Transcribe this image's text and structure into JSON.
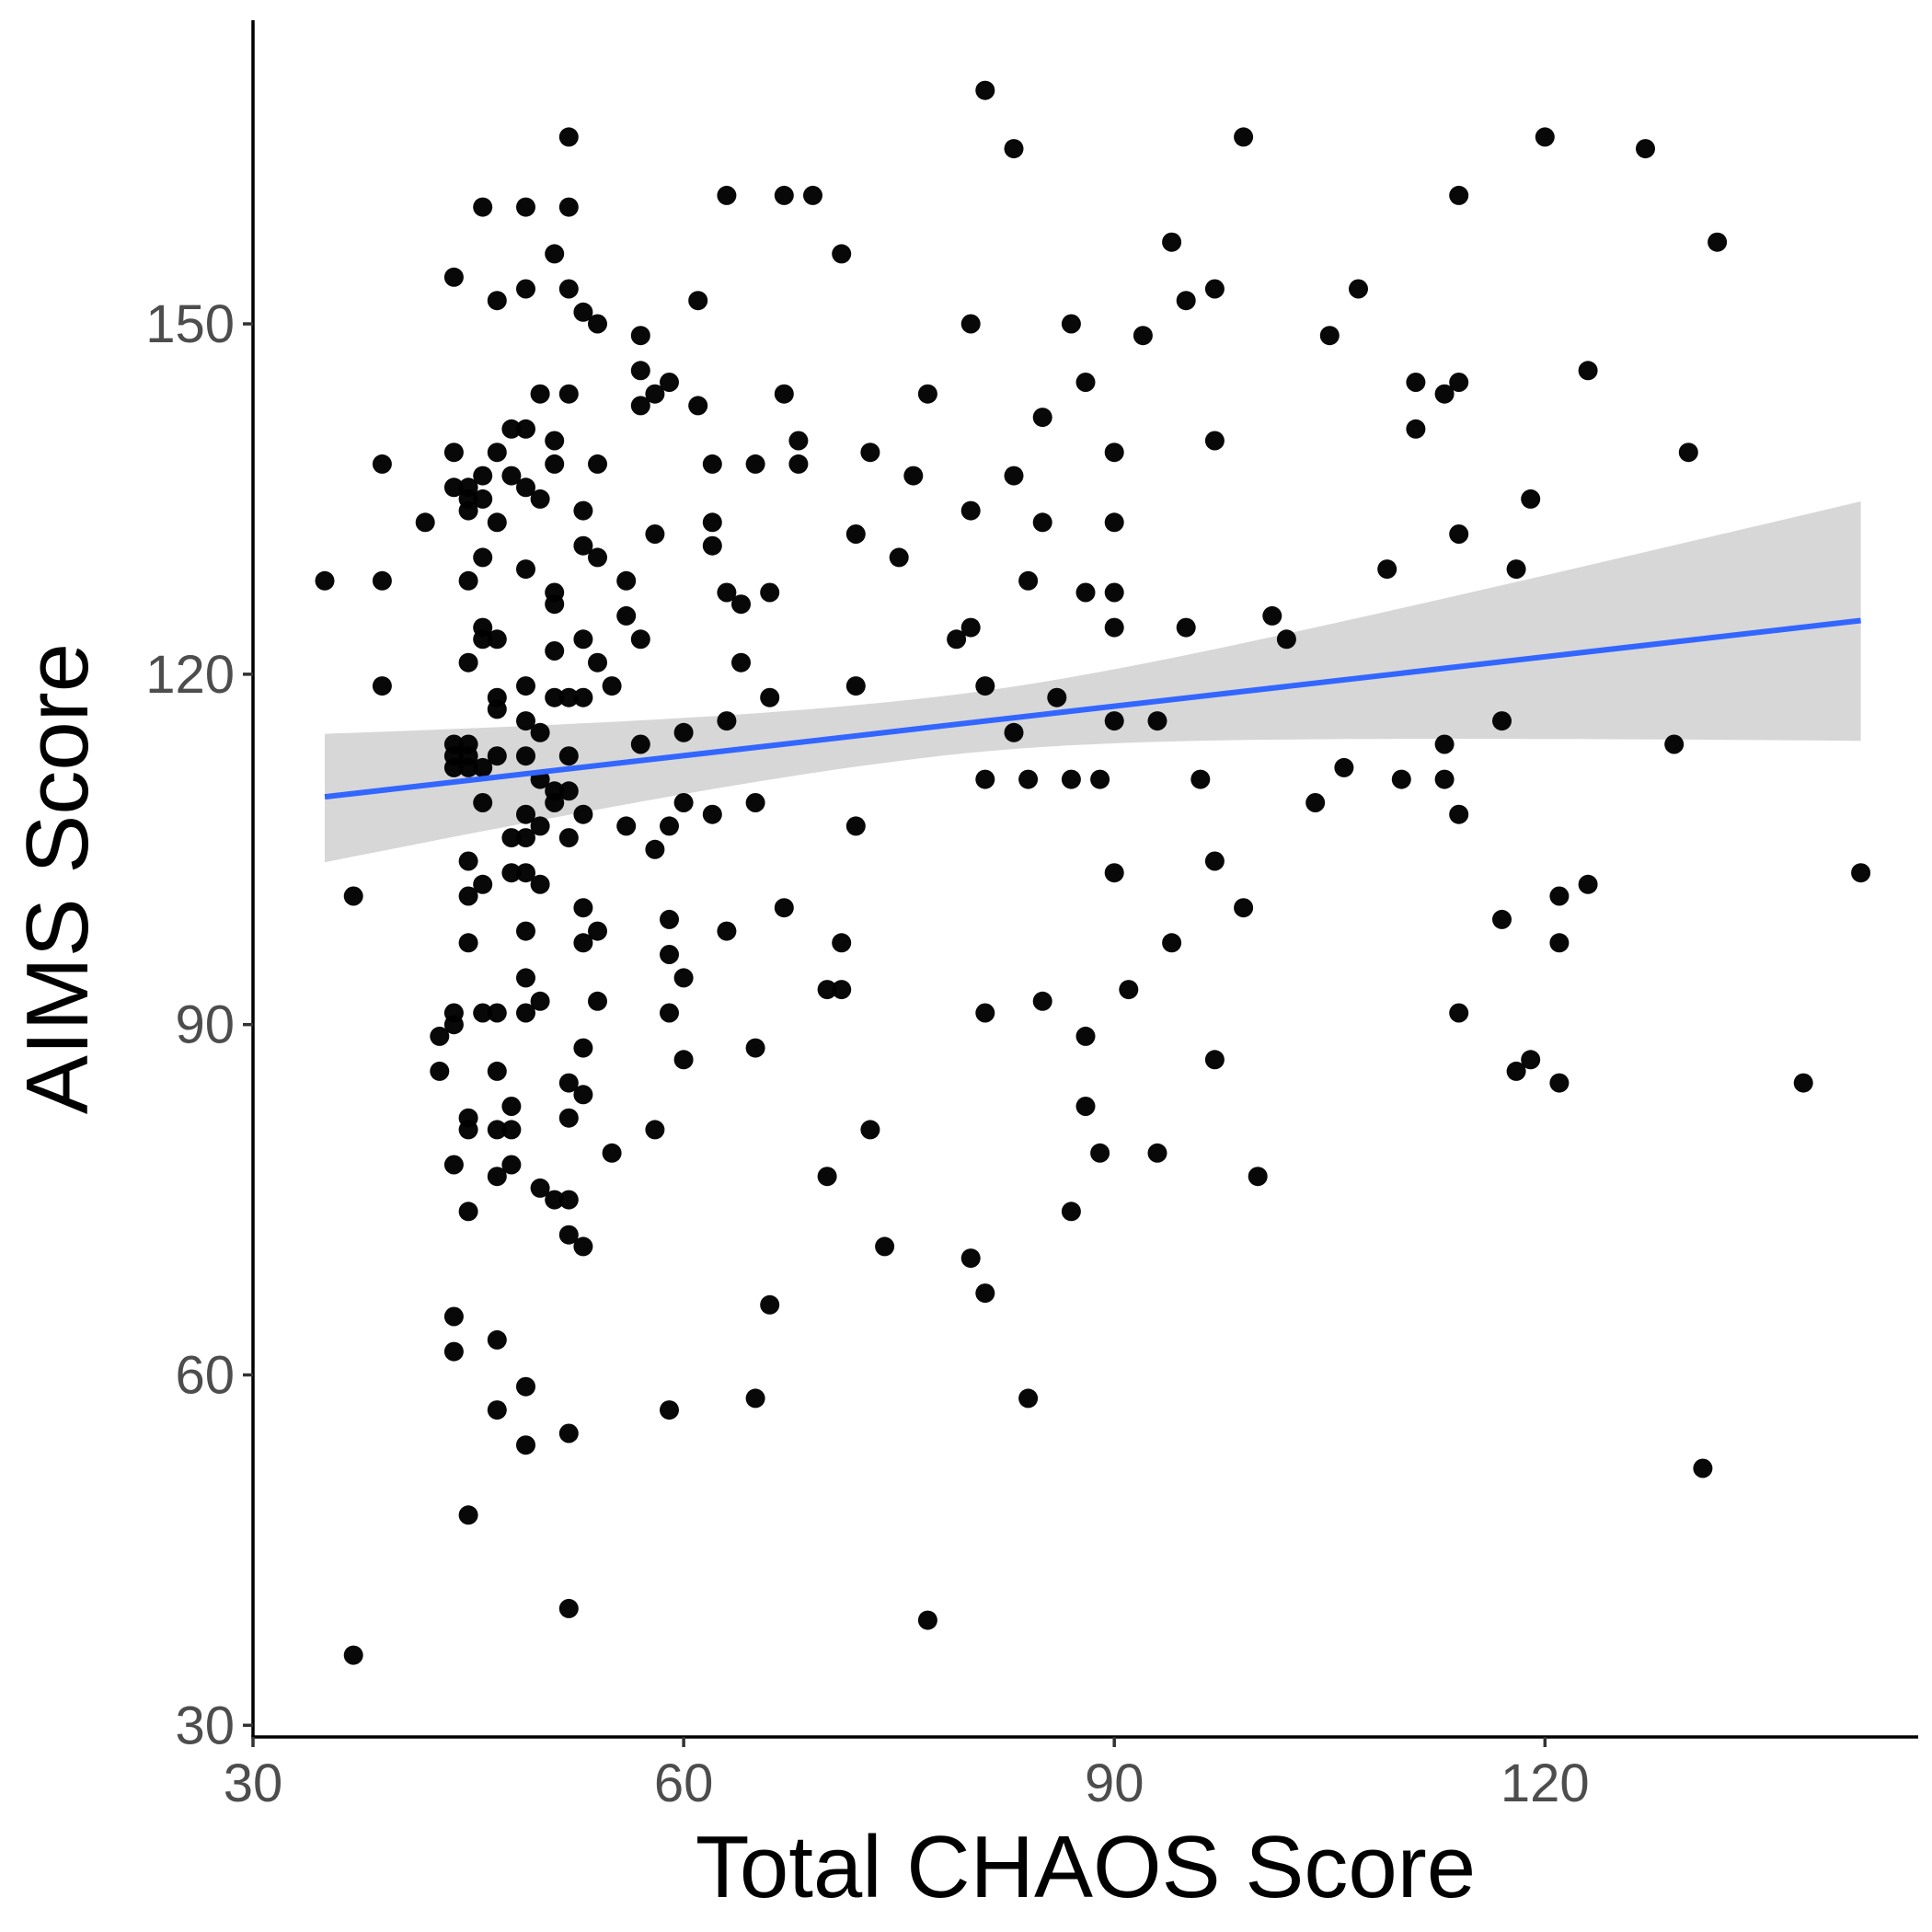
{
  "chart_data": {
    "type": "scatter",
    "title": "",
    "xlabel": "Total CHAOS Score",
    "ylabel": "AIMS Score",
    "xlim": [
      30,
      146
    ],
    "ylim": [
      29,
      176
    ],
    "x_ticks": [
      30,
      60,
      90,
      120
    ],
    "y_ticks": [
      30,
      60,
      90,
      120,
      150
    ],
    "grid": false,
    "legend": "none",
    "colors": {
      "points": "#000000",
      "fit_line": "#3366FF",
      "ribbon": "#D3D3D3"
    },
    "fit": {
      "type": "linear",
      "x": [
        35,
        142
      ],
      "y": [
        109.5,
        124.6
      ],
      "ci_lower": [
        103.9,
        114.3
      ],
      "ci_upper": [
        114.9,
        134.8
      ]
    },
    "points": [
      [
        35,
        128
      ],
      [
        37,
        101
      ],
      [
        37,
        36
      ],
      [
        39,
        138
      ],
      [
        39,
        128
      ],
      [
        39,
        119
      ],
      [
        42,
        133
      ],
      [
        43,
        89
      ],
      [
        43,
        86
      ],
      [
        44,
        154
      ],
      [
        44,
        139
      ],
      [
        44,
        136
      ],
      [
        44,
        114
      ],
      [
        44,
        113
      ],
      [
        44,
        112
      ],
      [
        44,
        91
      ],
      [
        44,
        90
      ],
      [
        44,
        78
      ],
      [
        44,
        65
      ],
      [
        44,
        62
      ],
      [
        45,
        136
      ],
      [
        45,
        135
      ],
      [
        45,
        134
      ],
      [
        45,
        128
      ],
      [
        45,
        121
      ],
      [
        45,
        114
      ],
      [
        45,
        113
      ],
      [
        45,
        112
      ],
      [
        45,
        104
      ],
      [
        45,
        101
      ],
      [
        45,
        97
      ],
      [
        45,
        82
      ],
      [
        45,
        81
      ],
      [
        45,
        74
      ],
      [
        45,
        48
      ],
      [
        46,
        160
      ],
      [
        46,
        137
      ],
      [
        46,
        135
      ],
      [
        46,
        130
      ],
      [
        46,
        124
      ],
      [
        46,
        123
      ],
      [
        46,
        112
      ],
      [
        46,
        109
      ],
      [
        46,
        102
      ],
      [
        46,
        91
      ],
      [
        47,
        152
      ],
      [
        47,
        139
      ],
      [
        47,
        133
      ],
      [
        47,
        123
      ],
      [
        47,
        118
      ],
      [
        47,
        117
      ],
      [
        47,
        113
      ],
      [
        47,
        91
      ],
      [
        47,
        86
      ],
      [
        47,
        81
      ],
      [
        47,
        77
      ],
      [
        47,
        63
      ],
      [
        47,
        57
      ],
      [
        48,
        141
      ],
      [
        48,
        137
      ],
      [
        48,
        106
      ],
      [
        48,
        103
      ],
      [
        48,
        83
      ],
      [
        48,
        81
      ],
      [
        48,
        78
      ],
      [
        49,
        160
      ],
      [
        49,
        153
      ],
      [
        49,
        141
      ],
      [
        49,
        136
      ],
      [
        49,
        129
      ],
      [
        49,
        119
      ],
      [
        49,
        116
      ],
      [
        49,
        113
      ],
      [
        49,
        108
      ],
      [
        49,
        106
      ],
      [
        49,
        103
      ],
      [
        49,
        98
      ],
      [
        49,
        94
      ],
      [
        49,
        91
      ],
      [
        49,
        59
      ],
      [
        49,
        54
      ],
      [
        50,
        144
      ],
      [
        50,
        135
      ],
      [
        50,
        115
      ],
      [
        50,
        111
      ],
      [
        50,
        107
      ],
      [
        50,
        102
      ],
      [
        50,
        92
      ],
      [
        50,
        76
      ],
      [
        51,
        156
      ],
      [
        51,
        140
      ],
      [
        51,
        138
      ],
      [
        51,
        127
      ],
      [
        51,
        126
      ],
      [
        51,
        122
      ],
      [
        51,
        118
      ],
      [
        51,
        110
      ],
      [
        51,
        109
      ],
      [
        51,
        75
      ],
      [
        52,
        166
      ],
      [
        52,
        160
      ],
      [
        52,
        153
      ],
      [
        52,
        144
      ],
      [
        52,
        118
      ],
      [
        52,
        113
      ],
      [
        52,
        110
      ],
      [
        52,
        106
      ],
      [
        52,
        85
      ],
      [
        52,
        82
      ],
      [
        52,
        75
      ],
      [
        52,
        72
      ],
      [
        52,
        55
      ],
      [
        52,
        40
      ],
      [
        53,
        151
      ],
      [
        53,
        134
      ],
      [
        53,
        131
      ],
      [
        53,
        123
      ],
      [
        53,
        118
      ],
      [
        53,
        108
      ],
      [
        53,
        100
      ],
      [
        53,
        97
      ],
      [
        53,
        88
      ],
      [
        53,
        84
      ],
      [
        53,
        71
      ],
      [
        54,
        150
      ],
      [
        54,
        138
      ],
      [
        54,
        130
      ],
      [
        54,
        121
      ],
      [
        54,
        98
      ],
      [
        54,
        92
      ],
      [
        55,
        119
      ],
      [
        55,
        79
      ],
      [
        56,
        128
      ],
      [
        56,
        125
      ],
      [
        56,
        107
      ],
      [
        57,
        149
      ],
      [
        57,
        146
      ],
      [
        57,
        143
      ],
      [
        57,
        123
      ],
      [
        57,
        114
      ],
      [
        58,
        144
      ],
      [
        58,
        132
      ],
      [
        58,
        105
      ],
      [
        58,
        81
      ],
      [
        59,
        145
      ],
      [
        59,
        107
      ],
      [
        59,
        99
      ],
      [
        59,
        96
      ],
      [
        59,
        91
      ],
      [
        59,
        57
      ],
      [
        60,
        115
      ],
      [
        60,
        109
      ],
      [
        60,
        94
      ],
      [
        60,
        87
      ],
      [
        61,
        152
      ],
      [
        61,
        143
      ],
      [
        62,
        138
      ],
      [
        62,
        133
      ],
      [
        62,
        131
      ],
      [
        62,
        108
      ],
      [
        63,
        161
      ],
      [
        63,
        127
      ],
      [
        63,
        116
      ],
      [
        63,
        98
      ],
      [
        64,
        126
      ],
      [
        64,
        121
      ],
      [
        65,
        138
      ],
      [
        65,
        109
      ],
      [
        65,
        88
      ],
      [
        65,
        58
      ],
      [
        66,
        127
      ],
      [
        66,
        118
      ],
      [
        66,
        66
      ],
      [
        67,
        161
      ],
      [
        67,
        144
      ],
      [
        67,
        100
      ],
      [
        68,
        140
      ],
      [
        68,
        138
      ],
      [
        69,
        161
      ],
      [
        70,
        93
      ],
      [
        70,
        77
      ],
      [
        71,
        156
      ],
      [
        71,
        97
      ],
      [
        71,
        93
      ],
      [
        72,
        132
      ],
      [
        72,
        119
      ],
      [
        72,
        107
      ],
      [
        73,
        139
      ],
      [
        73,
        81
      ],
      [
        74,
        71
      ],
      [
        75,
        130
      ],
      [
        76,
        137
      ],
      [
        77,
        144
      ],
      [
        77,
        39
      ],
      [
        79,
        123
      ],
      [
        80,
        150
      ],
      [
        80,
        134
      ],
      [
        80,
        124
      ],
      [
        80,
        70
      ],
      [
        81,
        170
      ],
      [
        81,
        119
      ],
      [
        81,
        111
      ],
      [
        81,
        91
      ],
      [
        81,
        67
      ],
      [
        83,
        165
      ],
      [
        83,
        137
      ],
      [
        83,
        115
      ],
      [
        84,
        128
      ],
      [
        84,
        111
      ],
      [
        84,
        58
      ],
      [
        85,
        142
      ],
      [
        85,
        133
      ],
      [
        85,
        92
      ],
      [
        86,
        118
      ],
      [
        87,
        150
      ],
      [
        87,
        111
      ],
      [
        87,
        74
      ],
      [
        88,
        145
      ],
      [
        88,
        127
      ],
      [
        88,
        89
      ],
      [
        88,
        83
      ],
      [
        89,
        111
      ],
      [
        89,
        79
      ],
      [
        90,
        139
      ],
      [
        90,
        133
      ],
      [
        90,
        127
      ],
      [
        90,
        124
      ],
      [
        90,
        116
      ],
      [
        90,
        103
      ],
      [
        91,
        93
      ],
      [
        92,
        149
      ],
      [
        93,
        116
      ],
      [
        93,
        79
      ],
      [
        94,
        157
      ],
      [
        94,
        97
      ],
      [
        95,
        152
      ],
      [
        95,
        124
      ],
      [
        96,
        111
      ],
      [
        97,
        153
      ],
      [
        97,
        140
      ],
      [
        97,
        104
      ],
      [
        97,
        87
      ],
      [
        99,
        166
      ],
      [
        99,
        100
      ],
      [
        100,
        77
      ],
      [
        101,
        125
      ],
      [
        102,
        123
      ],
      [
        104,
        109
      ],
      [
        105,
        149
      ],
      [
        106,
        112
      ],
      [
        107,
        153
      ],
      [
        109,
        129
      ],
      [
        110,
        111
      ],
      [
        111,
        145
      ],
      [
        111,
        141
      ],
      [
        113,
        144
      ],
      [
        113,
        114
      ],
      [
        113,
        111
      ],
      [
        114,
        161
      ],
      [
        114,
        145
      ],
      [
        114,
        132
      ],
      [
        114,
        108
      ],
      [
        114,
        91
      ],
      [
        117,
        116
      ],
      [
        117,
        99
      ],
      [
        118,
        129
      ],
      [
        118,
        86
      ],
      [
        119,
        135
      ],
      [
        119,
        87
      ],
      [
        120,
        166
      ],
      [
        121,
        101
      ],
      [
        121,
        97
      ],
      [
        121,
        85
      ],
      [
        123,
        146
      ],
      [
        123,
        102
      ],
      [
        127,
        165
      ],
      [
        129,
        114
      ],
      [
        130,
        139
      ],
      [
        131,
        52
      ],
      [
        132,
        157
      ],
      [
        138,
        85
      ],
      [
        142,
        103
      ]
    ]
  }
}
